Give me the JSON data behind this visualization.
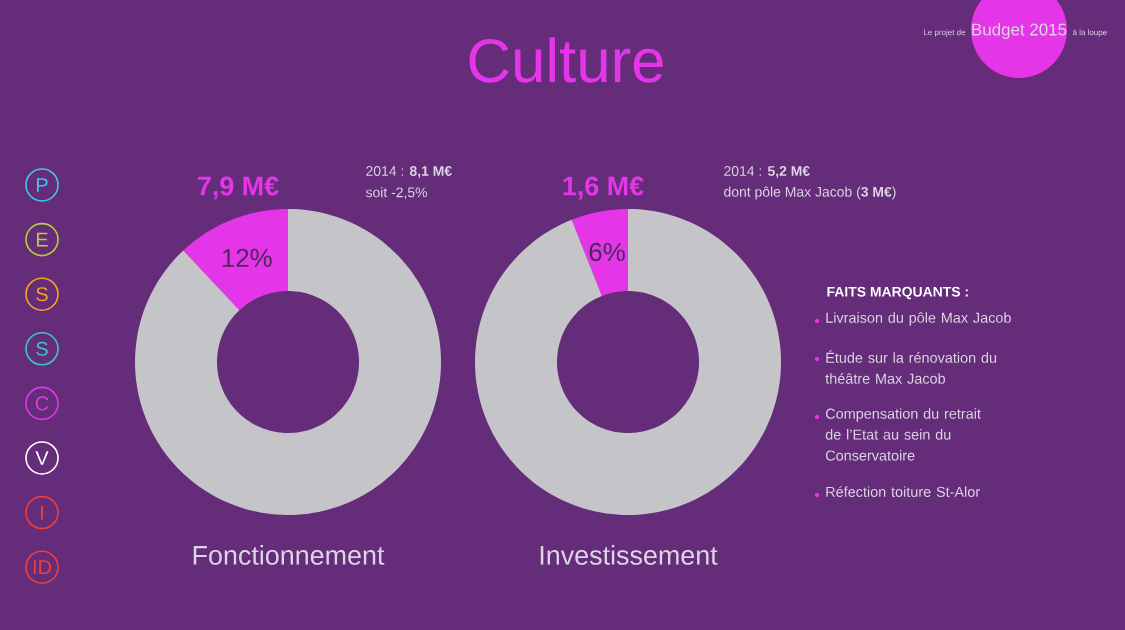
{
  "chart_data": [
    {
      "type": "donut",
      "xlabel": "Fonctionnement",
      "categories": [
        null,
        null
      ],
      "values": [
        12,
        88
      ],
      "colors": [
        "#e535e8",
        "#c5c4c8"
      ],
      "value_labels": [
        "12%",
        null
      ],
      "annotations": [
        "Le projet de",
        "Budget 2015",
        "à la loupe",
        "7,9 M€",
        "2014 : **8,1 M€**",
        "soit -2,5%",
        "P",
        "E",
        "S",
        "S",
        "C",
        "V",
        "I",
        "ID"
      ]
    },
    {
      "type": "donut",
      "title": "Culture",
      "xlabel": "Investissement",
      "categories": [
        null,
        null
      ],
      "values": [
        6,
        94
      ],
      "colors": [
        "#e535e8",
        "#c5c4c8"
      ],
      "value_labels": [
        "6%",
        null
      ],
      "annotations": [
        "1,6 M€",
        "2014 : **5,2 M€**",
        "dont pôle Max Jacob (**3 M€**)"
      ]
    },
    {
      "type": "other",
      "title": "FAITS MARQUANTS :",
      "annotations": [
        "Livraison du pôle Max Jacob",
        "Étude sur la rénovation du théâtre Max Jacob",
        "Compensation du retrait de l’Etat au sein du Conservatoire",
        "Réfection toiture St-Alor"
      ]
    }
  ]
}
